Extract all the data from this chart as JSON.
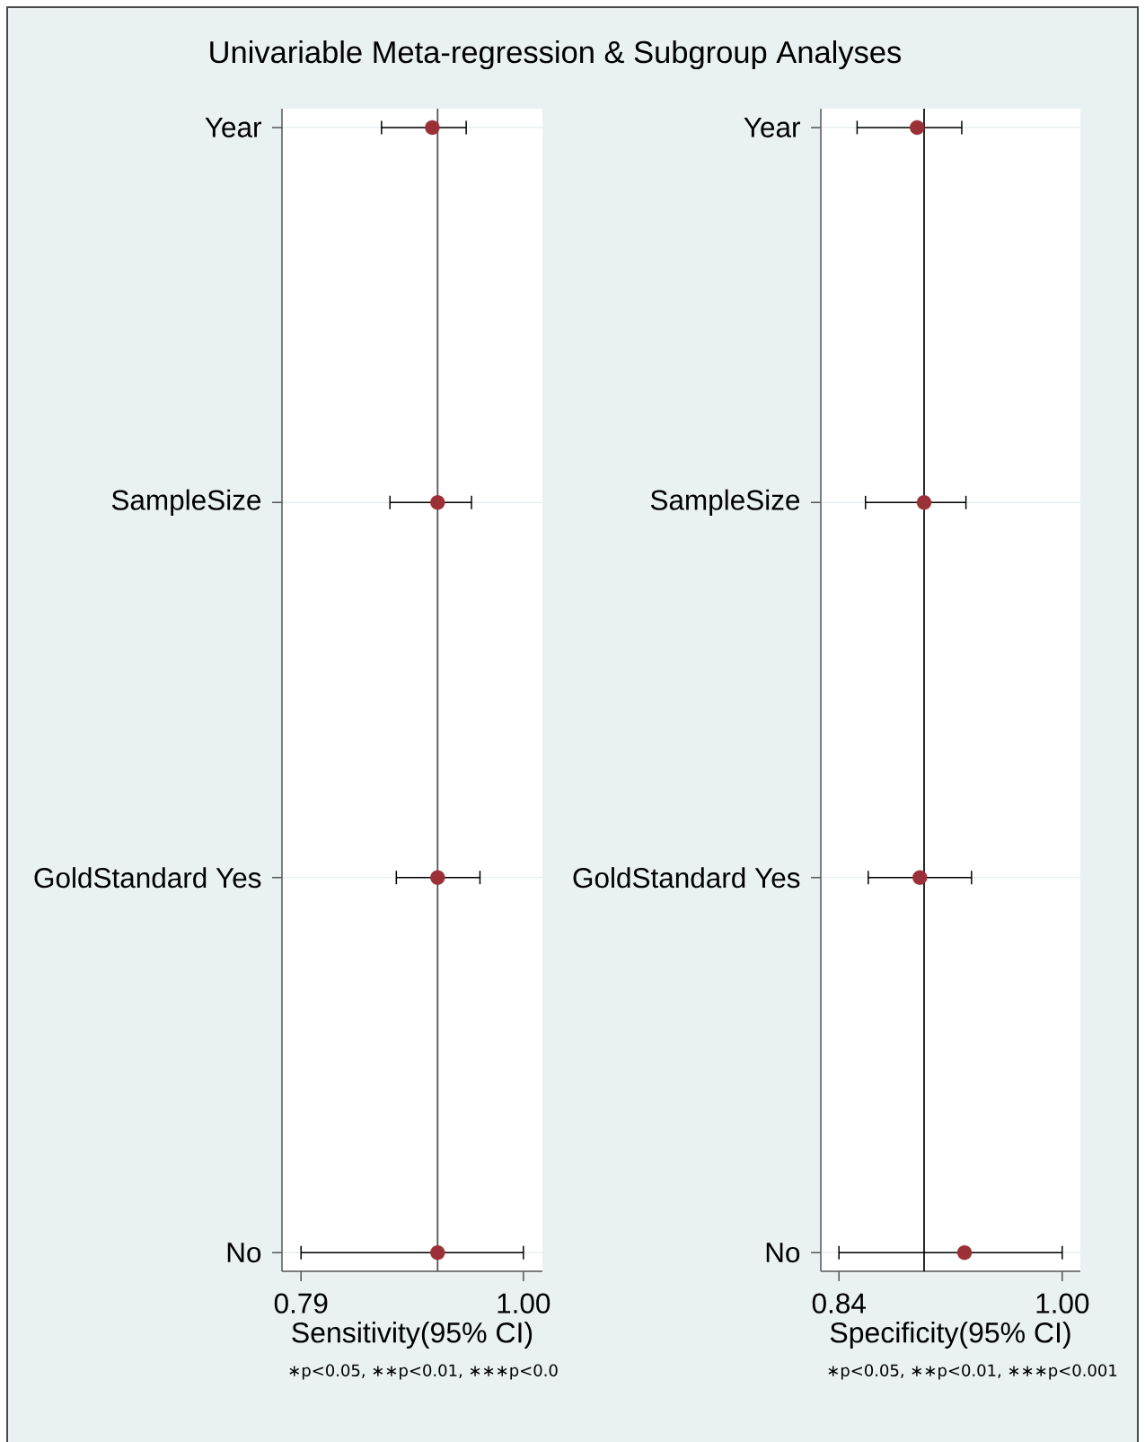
{
  "chart_data": [
    {
      "type": "scatter",
      "orientation": "horizontal",
      "title": "Univariable Meta-regression & Subgroup Analyses",
      "categories": [
        "Year",
        "SampleSize",
        "GoldStandard Yes",
        "No"
      ],
      "values": [
        0.914,
        0.919,
        0.919,
        0.919
      ],
      "errors": [
        [
          0.866,
          0.946
        ],
        [
          0.874,
          0.951
        ],
        [
          0.88,
          0.959
        ],
        [
          0.79,
          1.0
        ]
      ],
      "color": "#9b3037",
      "marker": "circle",
      "xlim": [
        0.772,
        1.018
      ],
      "xticks": [
        0.79,
        {
          "value": 1.0,
          "label": "1.00"
        }
      ],
      "xlabel": "Sensitivity(95% CI)",
      "ref_lines": [
        {
          "axis": "x",
          "value": 0.919,
          "color": "#555555"
        }
      ],
      "grid": "y",
      "annotations": [
        "∗p<0.05, ∗∗p<0.01, ∗∗∗p<0.0"
      ]
    },
    {
      "type": "scatter",
      "orientation": "horizontal",
      "categories": [
        "Year",
        "SampleSize",
        "GoldStandard Yes",
        "No"
      ],
      "values": [
        0.896,
        0.901,
        0.898,
        0.93
      ],
      "errors": [
        [
          0.853,
          0.928
        ],
        [
          0.859,
          0.931
        ],
        [
          0.861,
          0.935
        ],
        [
          0.84,
          1.0
        ]
      ],
      "color": "#9b3037",
      "marker": "circle",
      "xlim": [
        0.827,
        1.013
      ],
      "xticks": [
        0.84,
        {
          "value": 1.0,
          "label": "1.00"
        }
      ],
      "xlabel": "Specificity(95% CI)",
      "ref_lines": [
        {
          "axis": "x",
          "value": 0.901,
          "color": "#111111"
        }
      ],
      "grid": "y",
      "annotations": [
        "∗p<0.05, ∗∗p<0.01, ∗∗∗p<0.001"
      ]
    }
  ]
}
